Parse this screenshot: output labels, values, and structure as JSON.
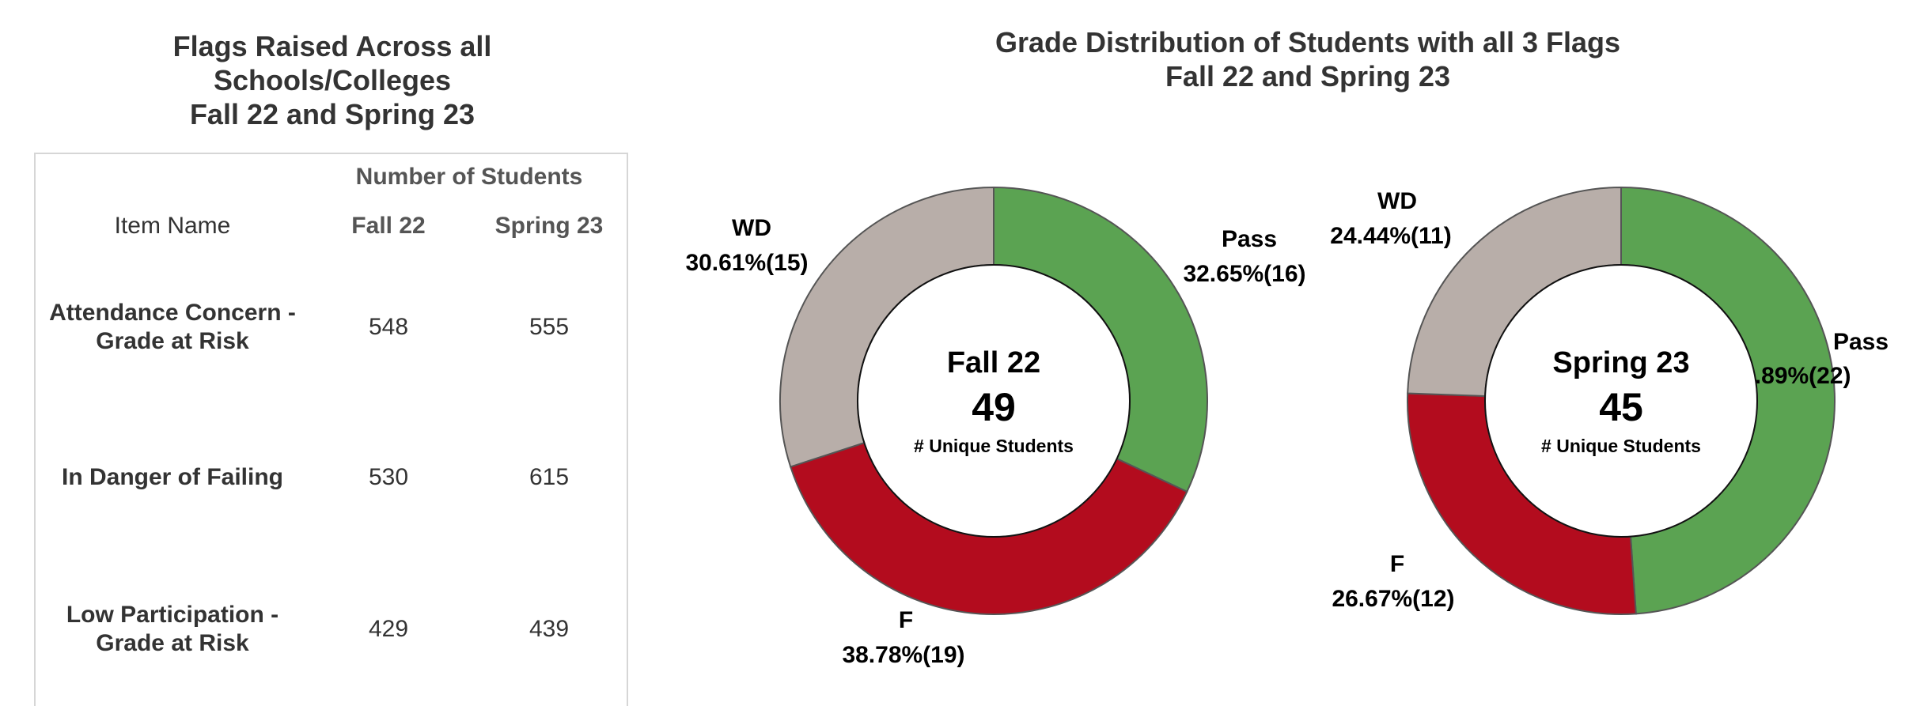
{
  "table": {
    "title": [
      "Flags Raised Across all",
      "Schools/Colleges",
      "Fall 22 and Spring 23"
    ],
    "group_header": "Number of Students",
    "columns": [
      "Item Name",
      "Fall 22",
      "Spring 23"
    ],
    "rows": [
      [
        "Attendance Concern - Grade at Risk",
        548,
        555
      ],
      [
        "In Danger of Failing",
        530,
        615
      ],
      [
        "Low Participation - Grade at Risk",
        429,
        439
      ]
    ]
  },
  "chart_title": [
    "Grade Distribution of Students with all 3 Flags",
    "Fall 22 and Spring 23"
  ],
  "chart_data": [
    {
      "type": "pie",
      "donut": true,
      "categories": [
        "Pass",
        "F",
        "WD"
      ],
      "values": [
        32.65,
        38.78,
        30.61
      ],
      "value_labels": [
        "32.65%(16)",
        "38.78%(19)",
        "30.61%(15)"
      ],
      "colors": [
        "#5ba352",
        "#b30c1e",
        "#b8aea9"
      ],
      "center_title": "Fall 22",
      "center_value": 49,
      "center_label": "# Unique Students"
    },
    {
      "type": "pie",
      "donut": true,
      "categories": [
        "Pass",
        "F",
        "WD"
      ],
      "values": [
        48.89,
        26.67,
        24.44
      ],
      "value_labels": [
        "48.89%(22)",
        "26.67%(12)",
        "24.44%(11)"
      ],
      "colors": [
        "#5ba352",
        "#b30c1e",
        "#b8aea9"
      ],
      "center_title": "Spring 23",
      "center_value": 45,
      "center_label": "# Unique Students"
    }
  ]
}
